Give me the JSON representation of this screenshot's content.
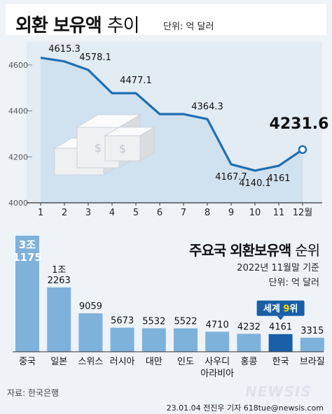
{
  "header": {
    "title_bold": "외환 보유액",
    "title_light": "추이",
    "unit": "단위: 억 달러"
  },
  "rank_section": {
    "title_bold": "주요국 외환보유액",
    "title_light": "순위",
    "date": "2022년 11월말 기준",
    "unit": "단위: 억 달러"
  },
  "footer": {
    "source": "자료: 한국은행",
    "credit": "23.01.04 전진우 기자 618tue@newsis.com",
    "watermark": "NEWSIS"
  },
  "colors": {
    "line": "#1f6fb2",
    "area": "#c9ddee",
    "bar": "#7fb2db",
    "bar_highlight": "#1a5fa6",
    "badge": "#1a5fa6",
    "badge_number": "#ffd400"
  },
  "chart_data": [
    {
      "type": "line",
      "title": "외환 보유액 추이",
      "ylabel": "단위: 억 달러",
      "x": [
        1,
        2,
        3,
        4,
        5,
        6,
        7,
        8,
        9,
        10,
        11,
        12
      ],
      "x_tick_labels": [
        "1",
        "2",
        "3",
        "4",
        "5",
        "6",
        "7",
        "8",
        "9",
        "10",
        "11",
        "12월"
      ],
      "y_ticks": [
        4000,
        4200,
        4400,
        4600
      ],
      "ylim": [
        4000,
        4700
      ],
      "series": [
        {
          "values": [
            4631.2,
            4615.3,
            4578.1,
            4477.1,
            4477.1,
            4386.1,
            4386.1,
            4364.3,
            4167.7,
            4140.1,
            4161,
            4231.6
          ]
        }
      ],
      "data_labels": [
        {
          "index": 1,
          "text": "4615.3"
        },
        {
          "index": 2,
          "text": "4578.1"
        },
        {
          "index": 4,
          "text": "4477.1"
        },
        {
          "index": 7,
          "text": "4364.3"
        },
        {
          "index": 8,
          "text": "4167.7"
        },
        {
          "index": 9,
          "text": "4140.1"
        },
        {
          "index": 10,
          "text": "4161"
        },
        {
          "index": 11,
          "text": "4231.6"
        }
      ],
      "grid": false
    },
    {
      "type": "bar",
      "title": "주요국 외환보유액 순위",
      "categories": [
        "중국",
        "일본",
        "스위스",
        "러시아",
        "대만",
        "인도",
        "사우디아라비아",
        "홍콩",
        "한국",
        "브라질"
      ],
      "category_lines": [
        [
          "중국"
        ],
        [
          "일본"
        ],
        [
          "스위스"
        ],
        [
          "러시아"
        ],
        [
          "대만"
        ],
        [
          "인도"
        ],
        [
          "사우디",
          "아라비아"
        ],
        [
          "홍콩"
        ],
        [
          "한국"
        ],
        [
          "브라질"
        ]
      ],
      "values": [
        31175,
        12263,
        9059,
        5673,
        5532,
        5522,
        4710,
        4232,
        4161,
        3315
      ],
      "value_labels": [
        [
          "3조",
          "1175"
        ],
        [
          "1조",
          "2263"
        ],
        [
          "9059"
        ],
        [
          "5673"
        ],
        [
          "5532"
        ],
        [
          "5522"
        ],
        [
          "4710"
        ],
        [
          "4232"
        ],
        [
          "4161"
        ],
        [
          "3315"
        ]
      ],
      "highlight_index": 8,
      "highlight_badge": {
        "prefix": "세계 ",
        "number": "9",
        "suffix": "위"
      }
    }
  ]
}
